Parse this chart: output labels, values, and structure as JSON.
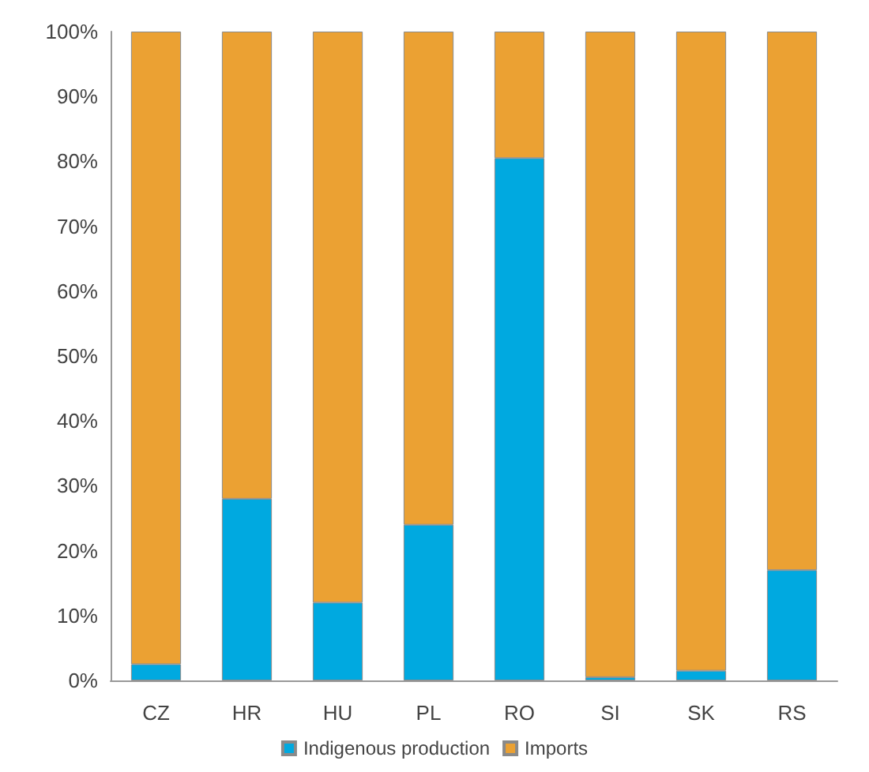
{
  "chart_data": {
    "type": "bar",
    "stacked": true,
    "categories": [
      "CZ",
      "HR",
      "HU",
      "PL",
      "RO",
      "SI",
      "SK",
      "RS"
    ],
    "series": [
      {
        "name": "Indigenous production",
        "color": "#00a9e0",
        "values": [
          2.5,
          28,
          12,
          24,
          80.5,
          0.5,
          1.5,
          17
        ]
      },
      {
        "name": "Imports",
        "color": "#eba133",
        "values": [
          97.5,
          72,
          88,
          76,
          19.5,
          99.5,
          98.5,
          83
        ]
      }
    ],
    "ylim": [
      0,
      100
    ],
    "yticks": [
      {
        "value": 0,
        "label": "0%"
      },
      {
        "value": 10,
        "label": "10%"
      },
      {
        "value": 20,
        "label": "20%"
      },
      {
        "value": 30,
        "label": "30%"
      },
      {
        "value": 40,
        "label": "40%"
      },
      {
        "value": 50,
        "label": "50%"
      },
      {
        "value": 60,
        "label": "60%"
      },
      {
        "value": 70,
        "label": "70%"
      },
      {
        "value": 80,
        "label": "80%"
      },
      {
        "value": 90,
        "label": "90%"
      },
      {
        "value": 100,
        "label": "100%"
      }
    ],
    "grid": false,
    "legend": "bottom"
  }
}
